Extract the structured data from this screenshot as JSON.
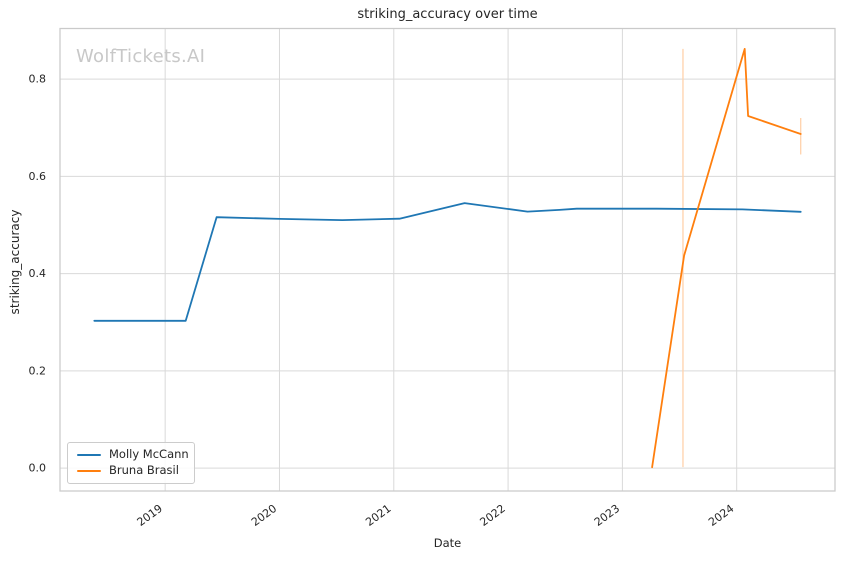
{
  "watermark": "WolfTickets.AI",
  "chart_data": {
    "type": "line",
    "title": "striking_accuracy over time",
    "xlabel": "Date",
    "ylabel": "striking_accuracy",
    "xlim": [
      2018.08,
      2024.86
    ],
    "ylim": [
      -0.047,
      0.904
    ],
    "grid": true,
    "legend_position": "lower left",
    "x_ticks": [
      {
        "value": 2019,
        "label": "2019"
      },
      {
        "value": 2020,
        "label": "2020"
      },
      {
        "value": 2021,
        "label": "2021"
      },
      {
        "value": 2022,
        "label": "2022"
      },
      {
        "value": 2023,
        "label": "2023"
      },
      {
        "value": 2024,
        "label": "2024"
      }
    ],
    "y_ticks": [
      {
        "value": 0.0,
        "label": "0.0"
      },
      {
        "value": 0.2,
        "label": "0.2"
      },
      {
        "value": 0.4,
        "label": "0.4"
      },
      {
        "value": 0.6,
        "label": "0.6"
      },
      {
        "value": 0.8,
        "label": "0.8"
      }
    ],
    "series": [
      {
        "name": "Molly McCann",
        "color": "#1f77b4",
        "points": [
          [
            2018.38,
            0.303
          ],
          [
            2019.18,
            0.303
          ],
          [
            2019.45,
            0.516
          ],
          [
            2020.0,
            0.5125
          ],
          [
            2020.55,
            0.51
          ],
          [
            2021.05,
            0.513
          ],
          [
            2021.62,
            0.545
          ],
          [
            2022.17,
            0.5275
          ],
          [
            2022.45,
            0.531
          ],
          [
            2022.6,
            0.5335
          ],
          [
            2023.3,
            0.5335
          ],
          [
            2024.05,
            0.532
          ],
          [
            2024.56,
            0.527
          ]
        ]
      },
      {
        "name": "Bruna Brasil",
        "color": "#ff7f0e",
        "points": [
          [
            2023.26,
            0.002
          ],
          [
            2023.54,
            0.437
          ],
          [
            2024.07,
            0.862
          ],
          [
            2024.1,
            0.724
          ],
          [
            2024.56,
            0.687
          ]
        ]
      }
    ],
    "error_bars": [
      {
        "series": "Bruna Brasil",
        "x": 2023.53,
        "y_low": 0.002,
        "y_high": 0.862,
        "color": "#ffd2ab"
      },
      {
        "series": "Bruna Brasil",
        "x": 2024.56,
        "y_low": 0.645,
        "y_high": 0.72,
        "color": "#ffd2ab"
      }
    ],
    "colors": {
      "grid": "#d9d9d9",
      "spine": "#cacaca",
      "text": "#262626",
      "watermark": "#c8c8c8",
      "background": "#ffffff"
    }
  }
}
